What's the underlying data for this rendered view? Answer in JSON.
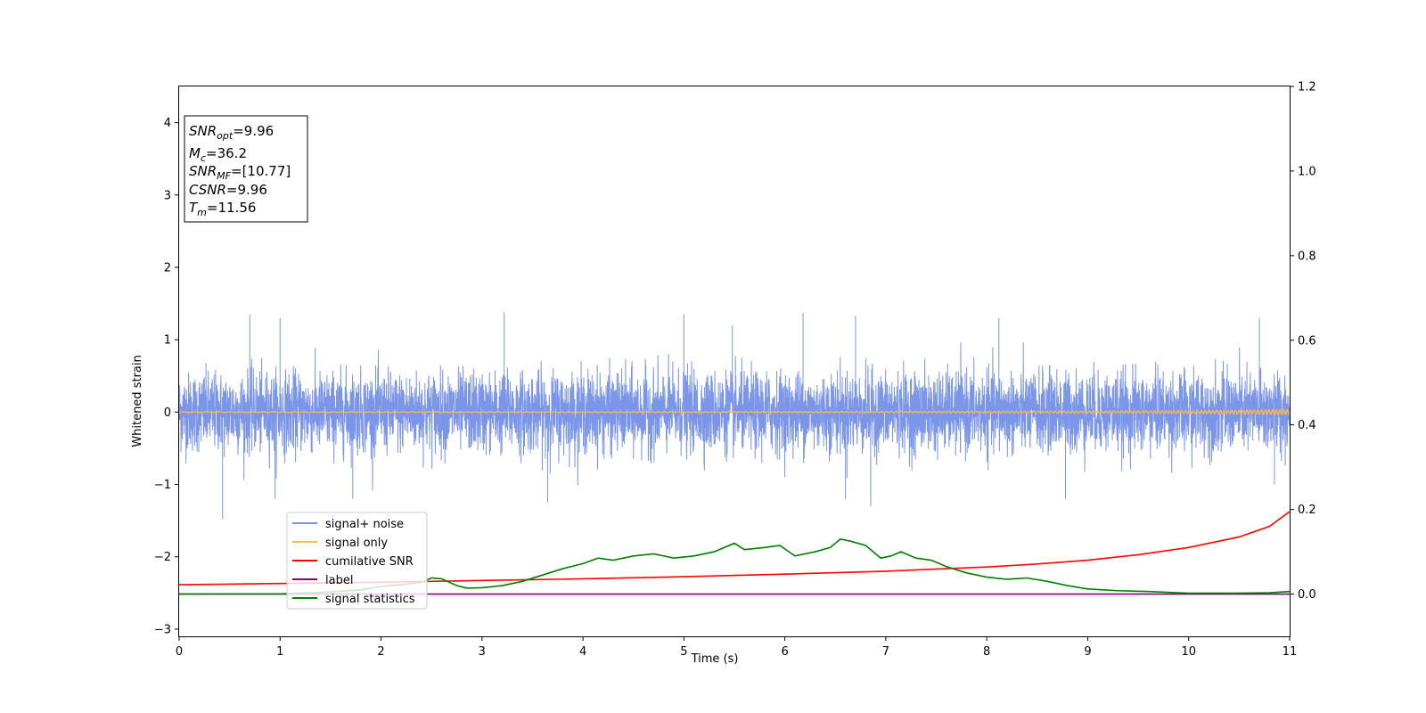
{
  "chart_data": {
    "type": "line",
    "xlabel": "Time (s)",
    "ylabel_left": "Whitened strain",
    "ylabel_right": "",
    "xlim": [
      0,
      11
    ],
    "ylim_left": [
      -3.1,
      4.5
    ],
    "ylim_right": [
      -0.1,
      1.2
    ],
    "x_ticks": [
      "0",
      "1",
      "2",
      "3",
      "4",
      "5",
      "6",
      "7",
      "8",
      "9",
      "10",
      "11"
    ],
    "y_ticks_left": [
      "−3",
      "−2",
      "−1",
      "0",
      "1",
      "2",
      "3",
      "4"
    ],
    "y_ticks_right": [
      "0.0",
      "0.2",
      "0.4",
      "0.6",
      "0.8",
      "1.0",
      "1.2"
    ],
    "grid": false,
    "legend_position": "lower-left",
    "annotation": {
      "lines": [
        {
          "base": "SNR",
          "sub": "opt",
          "value": "=9.96"
        },
        {
          "base": "M",
          "sub": "c",
          "value": "=36.2"
        },
        {
          "base": "SNR",
          "sub": "MF",
          "value": "=[10.77]"
        },
        {
          "base": "CSNR",
          "sub": "",
          "value": "=9.96"
        },
        {
          "base": "T",
          "sub": "m",
          "value": "=11.56"
        }
      ]
    },
    "series": [
      {
        "name": "signal+ noise",
        "axis": "left",
        "color": "#7b96e8",
        "style": "dense-noise",
        "mean": 0,
        "typical_amplitude": 0.75,
        "peak_values": [
          {
            "x": 0.43,
            "y": -1.48
          },
          {
            "x": 0.7,
            "y": 1.35
          },
          {
            "x": 0.95,
            "y": -1.2
          },
          {
            "x": 1.0,
            "y": 1.3
          },
          {
            "x": 1.72,
            "y": -1.2
          },
          {
            "x": 3.22,
            "y": 1.38
          },
          {
            "x": 3.65,
            "y": -1.25
          },
          {
            "x": 5.0,
            "y": 1.35
          },
          {
            "x": 5.48,
            "y": 1.2
          },
          {
            "x": 6.18,
            "y": 1.37
          },
          {
            "x": 6.6,
            "y": -1.2
          },
          {
            "x": 6.7,
            "y": 1.33
          },
          {
            "x": 6.85,
            "y": -1.3
          },
          {
            "x": 8.12,
            "y": 1.3
          },
          {
            "x": 8.78,
            "y": -1.2
          },
          {
            "x": 10.7,
            "y": 1.3
          },
          {
            "x": 10.85,
            "y": -1.0
          }
        ]
      },
      {
        "name": "signal only",
        "axis": "left",
        "color": "#ffb84d",
        "style": "chirp",
        "x": [
          0,
          5,
          8,
          9.5,
          10.5,
          11
        ],
        "amplitude": [
          0.004,
          0.006,
          0.01,
          0.015,
          0.025,
          0.035
        ]
      },
      {
        "name": "cumilative SNR",
        "axis": "right",
        "color": "#ff0000",
        "x": [
          0,
          1,
          2,
          3,
          4,
          5,
          6,
          7,
          8,
          8.5,
          9,
          9.5,
          10,
          10.5,
          10.8,
          11
        ],
        "y": [
          0.022,
          0.025,
          0.028,
          0.032,
          0.036,
          0.041,
          0.047,
          0.054,
          0.064,
          0.071,
          0.08,
          0.093,
          0.11,
          0.135,
          0.16,
          0.195
        ]
      },
      {
        "name": "label",
        "axis": "right",
        "color": "#800080",
        "x": [
          0,
          11
        ],
        "y": [
          0,
          0
        ]
      },
      {
        "name": "signal statistics",
        "axis": "right",
        "color": "#008000",
        "x": [
          0,
          1.0,
          1.5,
          1.8,
          2.0,
          2.2,
          2.4,
          2.5,
          2.6,
          2.75,
          2.85,
          3.0,
          3.2,
          3.4,
          3.6,
          3.8,
          4.0,
          4.15,
          4.3,
          4.5,
          4.7,
          4.9,
          5.1,
          5.3,
          5.5,
          5.6,
          5.8,
          5.95,
          6.1,
          6.3,
          6.45,
          6.55,
          6.65,
          6.8,
          6.95,
          7.05,
          7.15,
          7.3,
          7.45,
          7.6,
          7.8,
          8.0,
          8.2,
          8.4,
          8.6,
          8.8,
          9.0,
          9.3,
          9.6,
          10.0,
          10.4,
          10.8,
          11
        ],
        "y": [
          0,
          0.0005,
          0.005,
          0.01,
          0.018,
          0.022,
          0.028,
          0.038,
          0.036,
          0.02,
          0.014,
          0.015,
          0.02,
          0.03,
          0.045,
          0.06,
          0.072,
          0.085,
          0.08,
          0.09,
          0.095,
          0.085,
          0.09,
          0.1,
          0.12,
          0.105,
          0.11,
          0.115,
          0.09,
          0.1,
          0.11,
          0.13,
          0.125,
          0.115,
          0.085,
          0.09,
          0.1,
          0.085,
          0.08,
          0.065,
          0.05,
          0.04,
          0.035,
          0.038,
          0.03,
          0.02,
          0.012,
          0.008,
          0.006,
          0.002,
          0.002,
          0.003,
          0.006
        ]
      }
    ]
  }
}
